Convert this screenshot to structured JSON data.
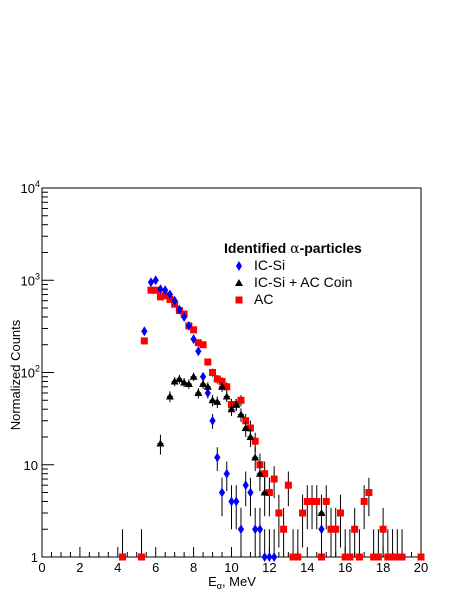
{
  "chart_data": {
    "type": "scatter",
    "xlabel_main": "E",
    "xlabel_sub": "α",
    "xlabel_rest": ", MeV",
    "ylabel": "Normalized Counts",
    "xlim": [
      0,
      20
    ],
    "ylim": [
      1,
      10000
    ],
    "yscale": "log",
    "x_ticks": [
      "0",
      "2",
      "4",
      "6",
      "8",
      "10",
      "12",
      "14",
      "16",
      "18",
      "20"
    ],
    "y_ticks": [
      {
        "base": "1",
        "exp": ""
      },
      {
        "base": "10",
        "exp": ""
      },
      {
        "base": "10",
        "exp": "2"
      },
      {
        "base": "10",
        "exp": "3"
      },
      {
        "base": "10",
        "exp": "4"
      }
    ],
    "legend_title_prefix": "Identified ",
    "legend_title_greek": "α",
    "legend_title_suffix": "-particles",
    "legend_position": "upper-right",
    "series": [
      {
        "name": "IC-Si",
        "marker": "diamond",
        "color": "#0000ff",
        "points": [
          [
            5.4,
            280
          ],
          [
            5.75,
            950
          ],
          [
            6.0,
            1000
          ],
          [
            6.25,
            800
          ],
          [
            6.5,
            780
          ],
          [
            6.75,
            700
          ],
          [
            7.0,
            600
          ],
          [
            7.25,
            480
          ],
          [
            7.5,
            400
          ],
          [
            7.75,
            320
          ],
          [
            8.0,
            230
          ],
          [
            8.25,
            170
          ],
          [
            8.5,
            90
          ],
          [
            8.75,
            60
          ],
          [
            9.0,
            30
          ],
          [
            9.25,
            12
          ],
          [
            9.5,
            5
          ],
          [
            9.75,
            8
          ],
          [
            10.0,
            4
          ],
          [
            10.25,
            4
          ],
          [
            10.5,
            2
          ],
          [
            10.75,
            6
          ],
          [
            11.0,
            5
          ],
          [
            11.25,
            2
          ],
          [
            11.5,
            2
          ],
          [
            11.75,
            1
          ],
          [
            12.0,
            1
          ],
          [
            12.25,
            1
          ],
          [
            14.75,
            2
          ]
        ]
      },
      {
        "name": "IC-Si + AC Coin",
        "marker": "triangle",
        "color": "#000000",
        "points": [
          [
            6.25,
            17
          ],
          [
            6.75,
            55
          ],
          [
            7.0,
            80
          ],
          [
            7.25,
            85
          ],
          [
            7.5,
            78
          ],
          [
            7.75,
            75
          ],
          [
            8.0,
            90
          ],
          [
            8.25,
            60
          ],
          [
            8.5,
            75
          ],
          [
            8.75,
            70
          ],
          [
            9.0,
            50
          ],
          [
            9.25,
            48
          ],
          [
            9.5,
            70
          ],
          [
            9.75,
            55
          ],
          [
            10.0,
            40
          ],
          [
            10.25,
            45
          ],
          [
            10.5,
            35
          ],
          [
            10.75,
            25
          ],
          [
            11.0,
            20
          ],
          [
            11.25,
            12
          ],
          [
            11.5,
            8
          ],
          [
            11.75,
            5
          ],
          [
            14.75,
            3
          ]
        ]
      },
      {
        "name": "AC",
        "marker": "square",
        "color": "#ff0000",
        "points": [
          [
            4.25,
            1
          ],
          [
            5.25,
            1
          ],
          [
            5.4,
            220
          ],
          [
            5.75,
            780
          ],
          [
            6.0,
            780
          ],
          [
            6.25,
            660
          ],
          [
            6.5,
            680
          ],
          [
            6.75,
            620
          ],
          [
            7.0,
            550
          ],
          [
            7.25,
            470
          ],
          [
            7.5,
            430
          ],
          [
            7.75,
            320
          ],
          [
            8.0,
            290
          ],
          [
            8.25,
            210
          ],
          [
            8.5,
            200
          ],
          [
            8.75,
            130
          ],
          [
            9.0,
            100
          ],
          [
            9.25,
            85
          ],
          [
            9.5,
            80
          ],
          [
            9.75,
            70
          ],
          [
            10.0,
            45
          ],
          [
            10.25,
            45
          ],
          [
            10.5,
            50
          ],
          [
            10.75,
            30
          ],
          [
            11.0,
            25
          ],
          [
            11.25,
            18
          ],
          [
            11.5,
            10
          ],
          [
            11.75,
            8
          ],
          [
            12.0,
            5
          ],
          [
            12.25,
            7
          ],
          [
            12.5,
            3
          ],
          [
            12.75,
            2
          ],
          [
            13.0,
            6
          ],
          [
            13.25,
            1
          ],
          [
            13.5,
            1
          ],
          [
            13.75,
            3
          ],
          [
            14.0,
            4
          ],
          [
            14.25,
            4
          ],
          [
            14.5,
            4
          ],
          [
            14.75,
            1
          ],
          [
            15.0,
            4
          ],
          [
            15.25,
            2
          ],
          [
            15.5,
            2
          ],
          [
            15.75,
            3
          ],
          [
            16.0,
            1
          ],
          [
            16.25,
            1
          ],
          [
            16.5,
            2
          ],
          [
            16.75,
            1
          ],
          [
            17.0,
            4
          ],
          [
            17.25,
            5
          ],
          [
            17.5,
            1
          ],
          [
            17.75,
            1
          ],
          [
            18.0,
            2
          ],
          [
            18.25,
            1
          ],
          [
            18.5,
            1
          ],
          [
            18.75,
            1
          ],
          [
            19.0,
            1
          ],
          [
            20.0,
            1
          ]
        ]
      }
    ]
  }
}
